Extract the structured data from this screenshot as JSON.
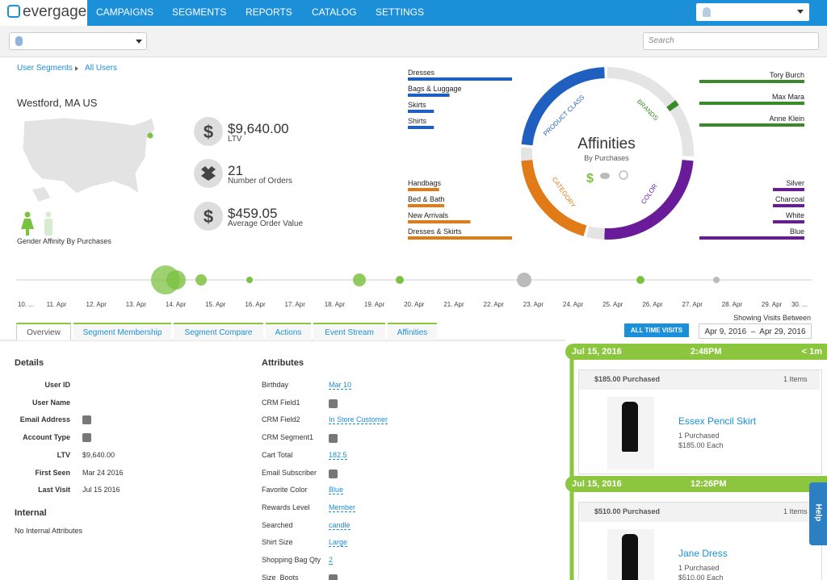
{
  "nav": {
    "logo": "evergage",
    "items": [
      "CAMPAIGNS",
      "SEGMENTS",
      "REPORTS",
      "CATALOG",
      "SETTINGS"
    ],
    "search": "Search"
  },
  "breadcrumb": [
    "User Segments",
    "All Users"
  ],
  "location": "Westford, MA US",
  "gender_label": "Gender Affinity By Purchases",
  "stats": [
    {
      "value": "$9,640.00",
      "label": "LTV"
    },
    {
      "value": "21",
      "label": "Number of Orders"
    },
    {
      "value": "$459.05",
      "label": "Average Order Value"
    }
  ],
  "affinities": {
    "title": "Affinities",
    "subtitle": "By Purchases",
    "ring_labels": [
      "PRODUCT CLASS",
      "BRANDS",
      "CATEGORY",
      "COLOR"
    ],
    "product_class": {
      "color": "#1f5fbf",
      "categories": [
        "Dresses",
        "Bags & Luggage",
        "Skirts",
        "Shirts"
      ],
      "values": [
        100,
        40,
        25,
        25
      ]
    },
    "category": {
      "color": "#e07b17",
      "categories": [
        "Handbags",
        "Bed & Bath",
        "New Arrivals",
        "Dresses & Skirts"
      ],
      "values": [
        30,
        35,
        60,
        100
      ]
    },
    "brands": {
      "color": "#3a8a2a",
      "categories": [
        "Tory Burch",
        "Max Mara",
        "Anne Klein"
      ],
      "values": [
        100,
        100,
        100
      ]
    },
    "color": {
      "color": "#6a1b9a",
      "categories": [
        "Silver",
        "Charcoal",
        "White",
        "Blue"
      ],
      "values": [
        30,
        30,
        30,
        100
      ]
    }
  },
  "timeline": {
    "labels": [
      "10. ...",
      "11. Apr",
      "12. Apr",
      "13. Apr",
      "14. Apr",
      "15. Apr",
      "16. Apr",
      "17. Apr",
      "18. Apr",
      "19. Apr",
      "20. Apr",
      "21. Apr",
      "22. Apr",
      "23. Apr",
      "24. Apr",
      "25. Apr",
      "26. Apr",
      "27. Apr",
      "28. Apr",
      "29. Apr",
      "30. ..."
    ],
    "showing": "Showing Visits Between",
    "button": "ALL TIME VISITS",
    "range": "Apr 9, 2016  –  Apr 29, 2016"
  },
  "tabs": [
    "Overview",
    "Segment Membership",
    "Segment Compare",
    "Actions",
    "Event Stream",
    "Affinities"
  ],
  "details": {
    "title": "Details",
    "rows": [
      {
        "label": "User ID"
      },
      {
        "label": "User Name"
      },
      {
        "label": "Email Address",
        "add": true
      },
      {
        "label": "Account Type",
        "add": true
      },
      {
        "label": "LTV",
        "value": "$9,640.00"
      },
      {
        "label": "First Seen",
        "value": "Mar 24 2016"
      },
      {
        "label": "Last Visit",
        "value": "Jul 15 2016"
      }
    ]
  },
  "internal": {
    "title": "Internal",
    "text": "No Internal Attributes"
  },
  "attributes": {
    "title": "Attributes",
    "rows": [
      {
        "label": "Birthday",
        "value": "Mar 10"
      },
      {
        "label": "CRM Field1",
        "add": true
      },
      {
        "label": "CRM Field2",
        "value": "In Store Customer"
      },
      {
        "label": "CRM Segment1",
        "add": true
      },
      {
        "label": "Cart Total",
        "value": "182.5"
      },
      {
        "label": "Email Subscriber",
        "add": true
      },
      {
        "label": "Favorite Color",
        "value": "Blue"
      },
      {
        "label": "Rewards Level",
        "value": "Member"
      },
      {
        "label": "Searched",
        "value": "candle"
      },
      {
        "label": "Shirt Size",
        "value": "Large"
      },
      {
        "label": "Shopping Bag Qty",
        "value": "2"
      },
      {
        "label": "Size_Boots",
        "add": true
      }
    ]
  },
  "events": [
    {
      "date": "Jul 15, 2016",
      "time": "2:48PM",
      "ago": "< 1m",
      "amount": "$185.00 Purchased",
      "items": "1 Items",
      "product": "Essex Pencil Skirt",
      "qty": "1 Purchased",
      "each": "$185.00 Each"
    },
    {
      "date": "Jul 15, 2016",
      "time": "12:26PM",
      "amount": "$510.00 Purchased",
      "items": "1 Items",
      "product": "Jane Dress",
      "qty": "1 Purchased",
      "each": "$510.00 Each"
    }
  ],
  "help": "Help"
}
